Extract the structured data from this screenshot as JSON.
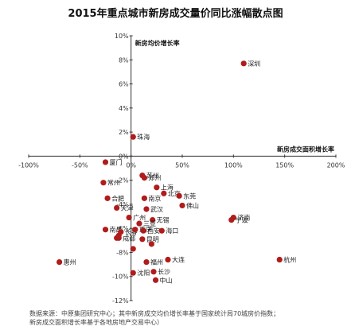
{
  "chart_data": {
    "type": "scatter",
    "title": "2015年重点城市新房成交量价同比涨幅散点图",
    "xlabel": "新房成交面积增长率",
    "ylabel": "新房均价增长率",
    "xlim": [
      -100,
      200
    ],
    "ylim": [
      -12,
      10
    ],
    "x_ticks": [
      "-100%",
      "-50%",
      "0%",
      "50%",
      "100%",
      "150%",
      "200%"
    ],
    "y_ticks": [
      "10%",
      "8%",
      "6%",
      "4%",
      "2%",
      "0%",
      "-2%",
      "-4%",
      "-6%",
      "-8%",
      "-10%",
      "-12%"
    ],
    "marker_color": "#b01c1c",
    "points": [
      {
        "name": "深圳",
        "x": 110,
        "y": 7.7
      },
      {
        "name": "珠海",
        "x": 2,
        "y": 1.6
      },
      {
        "name": "厦门",
        "x": -25,
        "y": -0.5
      },
      {
        "name": "苏州",
        "x": 11,
        "y": -1.6
      },
      {
        "name": "常州",
        "x": -27,
        "y": -2.2
      },
      {
        "name": "郑州",
        "x": 13,
        "y": -1.8
      },
      {
        "name": "上海",
        "x": 25,
        "y": -2.6
      },
      {
        "name": "北京",
        "x": 32,
        "y": -3.1
      },
      {
        "name": "东莞",
        "x": 47,
        "y": -3.3
      },
      {
        "name": "南京",
        "x": 13,
        "y": -3.5
      },
      {
        "name": "合肥",
        "x": -23,
        "y": -3.5
      },
      {
        "name": "天津",
        "x": -14,
        "y": -4.3
      },
      {
        "name": "武汉",
        "x": 15,
        "y": -4.4
      },
      {
        "name": "佛山",
        "x": 50,
        "y": -4.1
      },
      {
        "name": "广州",
        "x": -2,
        "y": -5.1
      },
      {
        "name": "无锡",
        "x": 21,
        "y": -5.3
      },
      {
        "name": "济南",
        "x": 100,
        "y": -5.1
      },
      {
        "name": "三亚",
        "x": 8,
        "y": -5.6
      },
      {
        "name": "宁波",
        "x": 98,
        "y": -5.3
      },
      {
        "name": "南昌",
        "x": -25,
        "y": -6.1
      },
      {
        "name": "长春",
        "x": -10,
        "y": -6.3
      },
      {
        "name": "重庆",
        "x": 4,
        "y": -6.1
      },
      {
        "name": "西安",
        "x": 12,
        "y": -6.2
      },
      {
        "name": "成都",
        "x": -12,
        "y": -6.8
      },
      {
        "name": "昆明",
        "x": 11,
        "y": -6.9
      },
      {
        "name": "海口",
        "x": 30,
        "y": -6.2
      },
      {
        "name": "惠州",
        "x": -70,
        "y": -8.8
      },
      {
        "name": "杭州",
        "x": 145,
        "y": -8.6
      },
      {
        "name": "福州",
        "x": 15,
        "y": -8.8
      },
      {
        "name": "大连",
        "x": 36,
        "y": -8.6
      },
      {
        "name": "长沙",
        "x": 22,
        "y": -9.6
      },
      {
        "name": "沈阳",
        "x": 2,
        "y": -9.7
      },
      {
        "name": "中山",
        "x": 24,
        "y": -10.3
      },
      {
        "name": "",
        "x": 20,
        "y": -7.3
      },
      {
        "name": "",
        "x": 2,
        "y": -7.7
      },
      {
        "name": "",
        "x": -14,
        "y": -6.8
      },
      {
        "name": "",
        "x": -12,
        "y": -6.6
      }
    ],
    "grid": false,
    "legend": "none"
  },
  "source": {
    "line1": "数据来源：中原集团研究中心；其中新房成交均价增长率基于国家统计局70城房价指数；",
    "line2": "新房成交面积增长率基于各地房地产交易中心）"
  }
}
